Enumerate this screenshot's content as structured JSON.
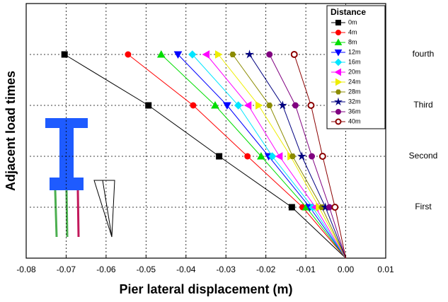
{
  "chart_data": {
    "type": "profile",
    "x_label": "Pier lateral displacement (m)",
    "y_label": "Adjacent load times",
    "legend_title": "Distance",
    "legend_position": "upper right",
    "grid": true,
    "levels": [
      0,
      1,
      2,
      3,
      4
    ],
    "xlim": [
      -0.08,
      0.01
    ],
    "xticks": [
      -0.08,
      -0.07,
      -0.06,
      -0.05,
      -0.04,
      -0.03,
      -0.02,
      -0.01,
      {
        "value": 0,
        "label": "0.00"
      },
      0.01
    ],
    "ylim": [
      0,
      5
    ],
    "yticks": [
      {
        "value": 1,
        "label": "First"
      },
      {
        "value": 2,
        "label": "Second"
      },
      {
        "value": 3,
        "label": "Third"
      },
      {
        "value": 4,
        "label": "fourth"
      }
    ],
    "series": [
      {
        "name": "0m",
        "color": "#000000",
        "marker": "square",
        "values": [
          0,
          -0.0135,
          -0.0317,
          -0.0494,
          -0.0704
        ]
      },
      {
        "name": "4m",
        "color": "#ff0000",
        "marker": "circle",
        "values": [
          0,
          -0.0108,
          -0.0246,
          -0.0382,
          -0.0545
        ]
      },
      {
        "name": "8m",
        "color": "#00dd00",
        "marker": "triangle-up",
        "values": [
          0,
          -0.0099,
          -0.0212,
          -0.0327,
          -0.0462
        ]
      },
      {
        "name": "12m",
        "color": "#0000ff",
        "marker": "triangle-down",
        "values": [
          0,
          -0.009,
          -0.0193,
          -0.0297,
          -0.042
        ]
      },
      {
        "name": "16m",
        "color": "#00e5ff",
        "marker": "diamond",
        "values": [
          0,
          -0.0083,
          -0.0184,
          -0.0269,
          -0.0384
        ]
      },
      {
        "name": "20m",
        "color": "#ff00ff",
        "marker": "triangle-left",
        "values": [
          0,
          -0.0076,
          -0.0166,
          -0.0244,
          -0.0349
        ]
      },
      {
        "name": "24m",
        "color": "#eeee00",
        "marker": "triangle-right",
        "values": [
          0,
          -0.0067,
          -0.0138,
          -0.0218,
          -0.0319
        ]
      },
      {
        "name": "28m",
        "color": "#8b8b00",
        "marker": "hexagon",
        "values": [
          0,
          -0.006,
          -0.0133,
          -0.0191,
          -0.0283
        ]
      },
      {
        "name": "32m",
        "color": "#000080",
        "marker": "star",
        "values": [
          0,
          -0.0051,
          -0.011,
          -0.0158,
          -0.0241
        ]
      },
      {
        "name": "36m",
        "color": "#800080",
        "marker": "circle",
        "values": [
          0,
          -0.0041,
          -0.0085,
          -0.0126,
          -0.0191
        ]
      },
      {
        "name": "40m",
        "color": "#8b0000",
        "marker": "circle-open",
        "values": [
          0,
          -0.0027,
          -0.0058,
          -0.0087,
          -0.0129
        ]
      }
    ]
  }
}
